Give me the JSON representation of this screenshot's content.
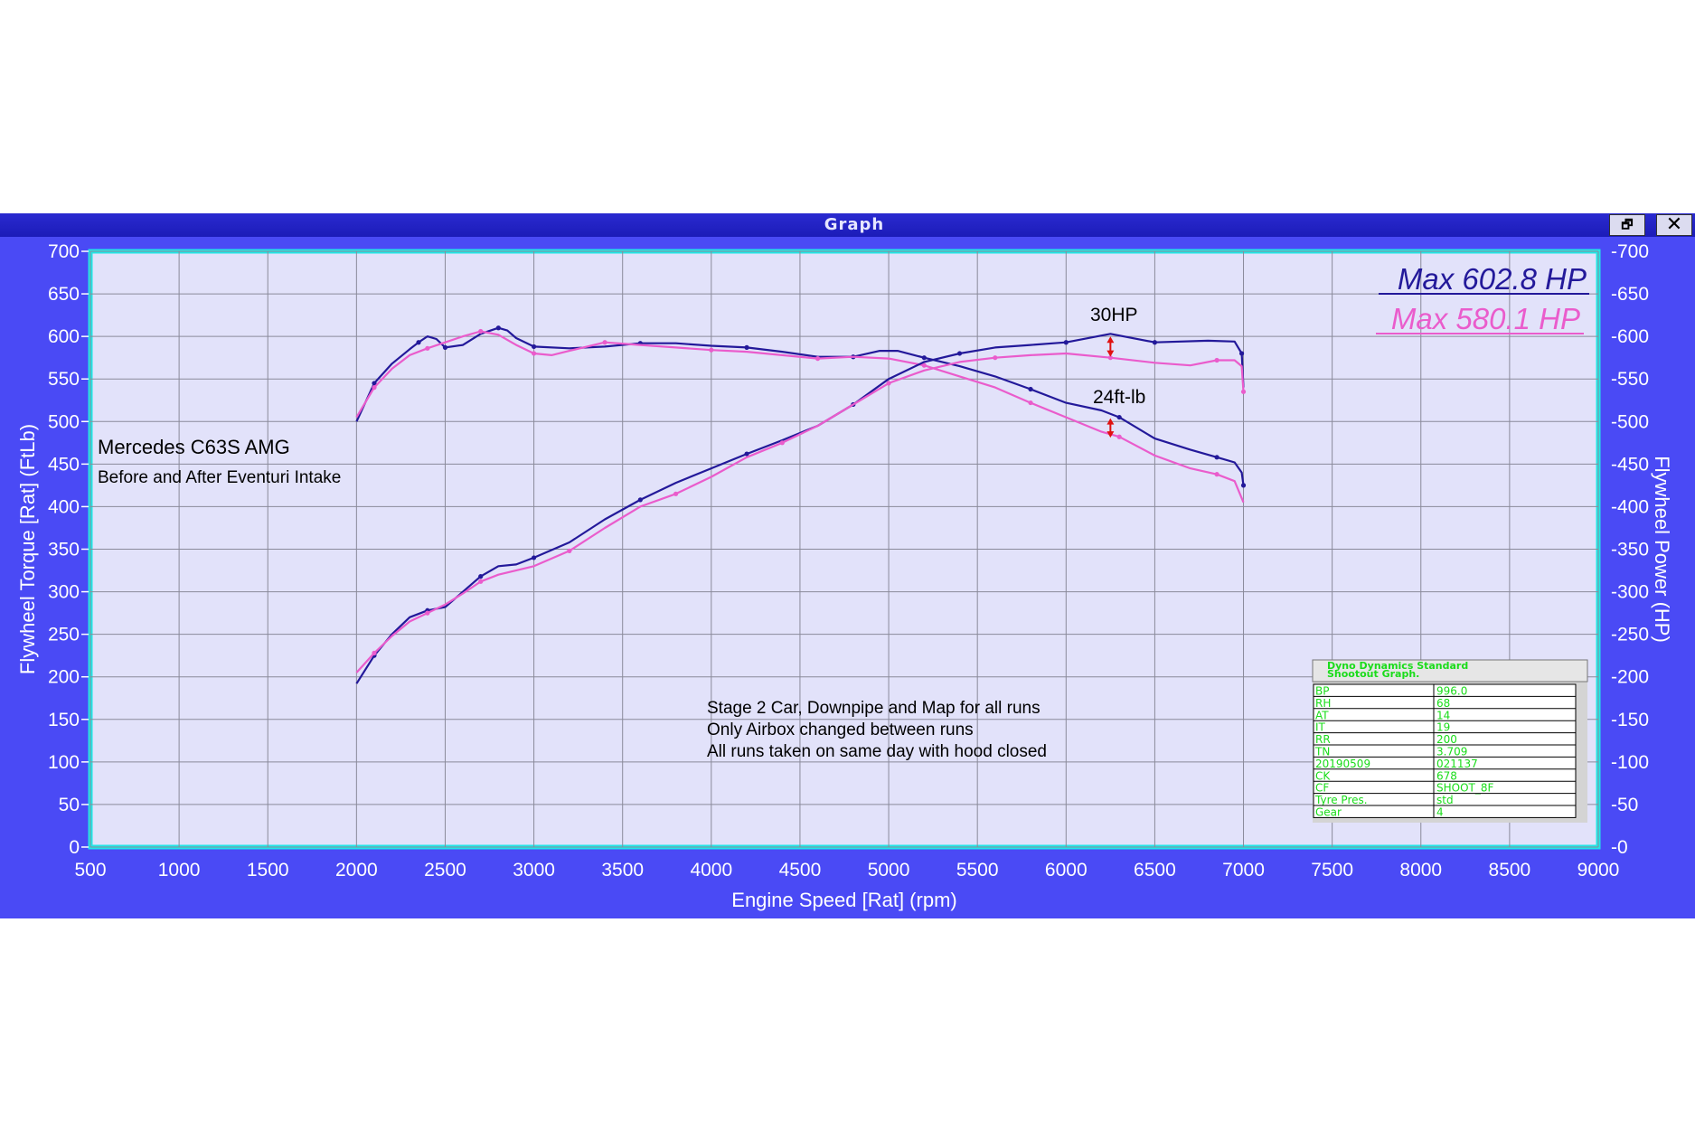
{
  "window": {
    "title": "Graph",
    "restore_glyph": "🗗",
    "close_glyph": "✕"
  },
  "colors": {
    "window_bg": "#4a4af5",
    "plot_bg": "#e2e2fa",
    "plot_border": "#22e6e6",
    "run_after": "#23199a",
    "run_before": "#ea5ccc",
    "arrow": "#e01010",
    "table_text": "#1adc1a"
  },
  "chart_data": {
    "type": "line",
    "xlabel": "Engine Speed [Rat] (rpm)",
    "ylabel_left": "Flywheel Torque [Rat] (FtLb)",
    "ylabel_right": "Flywheel Power (HP)",
    "xlim": [
      500,
      9000
    ],
    "ylim": [
      0,
      700
    ],
    "xticks": [
      500,
      1000,
      1500,
      2000,
      2500,
      3000,
      3500,
      4000,
      4500,
      5000,
      5500,
      6000,
      6500,
      7000,
      7500,
      8000,
      8500,
      9000
    ],
    "yticks": [
      0,
      50,
      100,
      150,
      200,
      250,
      300,
      350,
      400,
      450,
      500,
      550,
      600,
      650,
      700
    ],
    "grid": true,
    "series": [
      {
        "kind": "torque",
        "run": "after",
        "x": [
          2000,
          2100,
          2200,
          2300,
          2350,
          2400,
          2450,
          2500,
          2600,
          2700,
          2800,
          2850,
          2900,
          3000,
          3200,
          3400,
          3600,
          3800,
          4000,
          4200,
          4400,
          4600,
          4800,
          4950,
          5050,
          5200,
          5400,
          5600,
          5800,
          6000,
          6200,
          6300,
          6500,
          6700,
          6850,
          6950,
          6990,
          7000
        ],
        "y": [
          500,
          545,
          568,
          585,
          593,
          600,
          597,
          587,
          590,
          603,
          610,
          607,
          598,
          588,
          586,
          588,
          592,
          592,
          589,
          587,
          582,
          576,
          576,
          583,
          583,
          575,
          565,
          553,
          538,
          522,
          513,
          505,
          480,
          467,
          458,
          452,
          440,
          425
        ]
      },
      {
        "kind": "torque",
        "run": "before",
        "x": [
          2000,
          2100,
          2200,
          2300,
          2400,
          2500,
          2600,
          2700,
          2800,
          2900,
          3000,
          3100,
          3200,
          3400,
          3600,
          3800,
          4000,
          4200,
          4400,
          4600,
          4800,
          5000,
          5200,
          5400,
          5600,
          5800,
          6000,
          6200,
          6300,
          6500,
          6700,
          6850,
          6950,
          7000
        ],
        "y": [
          505,
          540,
          562,
          578,
          586,
          593,
          600,
          606,
          602,
          590,
          580,
          578,
          583,
          593,
          590,
          587,
          584,
          582,
          578,
          574,
          576,
          574,
          566,
          553,
          540,
          522,
          505,
          488,
          482,
          460,
          445,
          438,
          430,
          405
        ]
      },
      {
        "kind": "power",
        "run": "after",
        "x": [
          2000,
          2100,
          2200,
          2300,
          2400,
          2500,
          2600,
          2700,
          2800,
          2900,
          3000,
          3200,
          3400,
          3600,
          3800,
          4000,
          4200,
          4400,
          4600,
          4800,
          5000,
          5200,
          5400,
          5600,
          5800,
          6000,
          6200,
          6250,
          6500,
          6800,
          6950,
          6990,
          7000
        ],
        "y": [
          192,
          225,
          250,
          270,
          278,
          282,
          300,
          318,
          330,
          332,
          340,
          358,
          385,
          408,
          428,
          445,
          462,
          478,
          495,
          520,
          550,
          570,
          580,
          587,
          590,
          593,
          601,
          603,
          593,
          595,
          594,
          580,
          540
        ]
      },
      {
        "kind": "power",
        "run": "before",
        "x": [
          2000,
          2100,
          2200,
          2300,
          2400,
          2500,
          2600,
          2700,
          2800,
          3000,
          3200,
          3400,
          3600,
          3800,
          4000,
          4200,
          4400,
          4600,
          4800,
          5000,
          5200,
          5400,
          5600,
          5800,
          6000,
          6250,
          6500,
          6700,
          6850,
          6950,
          6990,
          7000
        ],
        "y": [
          205,
          228,
          248,
          265,
          275,
          285,
          298,
          312,
          320,
          330,
          348,
          375,
          400,
          415,
          435,
          458,
          475,
          495,
          520,
          545,
          560,
          570,
          575,
          578,
          580,
          575,
          569,
          566,
          572,
          572,
          565,
          535
        ]
      }
    ],
    "annotations": [
      {
        "text": "30HP",
        "x": 6250,
        "y": 615
      },
      {
        "text": "24ft-lb",
        "x": 6250,
        "y": 516
      },
      {
        "text": "Max 602.8 HP",
        "run": "after"
      },
      {
        "text": "Max 580.1 HP",
        "run": "before"
      }
    ],
    "arrows": [
      {
        "x": 6250,
        "y1": 601,
        "y2": 575
      },
      {
        "x": 6250,
        "y1": 505,
        "y2": 480
      }
    ],
    "notes": {
      "car": "Mercedes C63S AMG",
      "subtitle": "Before and After Eventuri Intake",
      "lines": [
        "Stage 2 Car, Downpipe and Map for all runs",
        "Only Airbox changed between runs",
        "All runs taken on same day with hood closed"
      ]
    },
    "info_table": {
      "header": [
        "Dyno Dynamics Standard",
        "Shootout Graph."
      ],
      "rows": [
        [
          "BP",
          "996.0"
        ],
        [
          "RH",
          "68"
        ],
        [
          "AT",
          "14"
        ],
        [
          "IT",
          "19"
        ],
        [
          "RR",
          "200"
        ],
        [
          "TN",
          "3.709"
        ],
        [
          "20190509",
          "021137"
        ],
        [
          "CK",
          "678"
        ],
        [
          "CF",
          "SHOOT_8F"
        ],
        [
          "Tyre Pres.",
          "std"
        ],
        [
          "Gear",
          "4"
        ]
      ]
    }
  }
}
